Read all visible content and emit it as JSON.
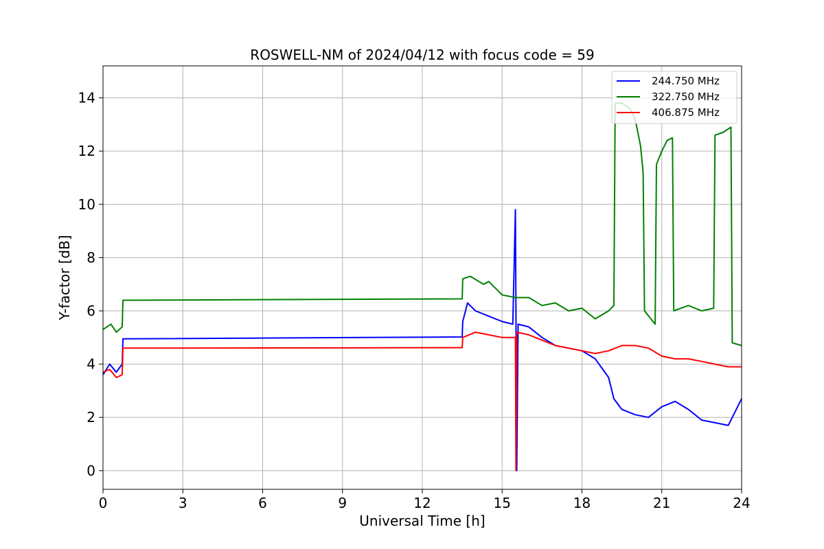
{
  "chart_data": {
    "type": "line",
    "title": "ROSWELL-NM of 2024/04/12 with focus code = 59",
    "xlabel": "Universal Time [h]",
    "ylabel": "Y-factor [dB]",
    "xlim": [
      0,
      24
    ],
    "ylim": [
      -0.7,
      15.2
    ],
    "xticks": [
      0,
      3,
      6,
      9,
      12,
      15,
      18,
      21,
      24
    ],
    "xtick_labels": [
      "0",
      "3",
      "6",
      "9",
      "12",
      "15",
      "18",
      "21",
      "24"
    ],
    "yticks": [
      0,
      2,
      4,
      6,
      8,
      10,
      12,
      14
    ],
    "ytick_labels": [
      "0",
      "2",
      "4",
      "6",
      "8",
      "10",
      "12",
      "14"
    ],
    "grid": true,
    "legend_position": "top-right",
    "series": [
      {
        "name": "244.750 MHz",
        "color": "#0000ff",
        "points": [
          [
            0.0,
            3.6
          ],
          [
            0.25,
            4.0
          ],
          [
            0.5,
            3.7
          ],
          [
            0.72,
            4.0
          ],
          [
            0.75,
            4.95
          ],
          [
            13.5,
            5.02
          ],
          [
            13.52,
            5.6
          ],
          [
            13.7,
            6.3
          ],
          [
            14.0,
            6.0
          ],
          [
            14.5,
            5.8
          ],
          [
            15.0,
            5.6
          ],
          [
            15.4,
            5.5
          ],
          [
            15.5,
            9.8
          ],
          [
            15.55,
            0.0
          ],
          [
            15.6,
            5.5
          ],
          [
            16.0,
            5.4
          ],
          [
            16.5,
            5.0
          ],
          [
            17.0,
            4.7
          ],
          [
            17.5,
            4.6
          ],
          [
            18.0,
            4.5
          ],
          [
            18.5,
            4.2
          ],
          [
            19.0,
            3.5
          ],
          [
            19.2,
            2.7
          ],
          [
            19.5,
            2.3
          ],
          [
            20.0,
            2.1
          ],
          [
            20.5,
            2.0
          ],
          [
            21.0,
            2.4
          ],
          [
            21.5,
            2.6
          ],
          [
            22.0,
            2.3
          ],
          [
            22.5,
            1.9
          ],
          [
            23.0,
            1.8
          ],
          [
            23.5,
            1.7
          ],
          [
            24.0,
            2.7
          ]
        ]
      },
      {
        "name": "322.750 MHz",
        "color": "#008000",
        "points": [
          [
            0.0,
            5.3
          ],
          [
            0.3,
            5.5
          ],
          [
            0.5,
            5.2
          ],
          [
            0.72,
            5.4
          ],
          [
            0.75,
            6.4
          ],
          [
            13.5,
            6.45
          ],
          [
            13.52,
            7.2
          ],
          [
            13.8,
            7.3
          ],
          [
            14.3,
            7.0
          ],
          [
            14.5,
            7.1
          ],
          [
            15.0,
            6.6
          ],
          [
            15.5,
            6.5
          ],
          [
            16.0,
            6.5
          ],
          [
            16.5,
            6.2
          ],
          [
            17.0,
            6.3
          ],
          [
            17.5,
            6.0
          ],
          [
            18.0,
            6.1
          ],
          [
            18.5,
            5.7
          ],
          [
            19.0,
            6.0
          ],
          [
            19.2,
            6.2
          ],
          [
            19.25,
            13.8
          ],
          [
            19.5,
            13.8
          ],
          [
            19.8,
            13.6
          ],
          [
            20.0,
            13.2
          ],
          [
            20.2,
            12.2
          ],
          [
            20.3,
            11.2
          ],
          [
            20.35,
            6.0
          ],
          [
            20.75,
            5.5
          ],
          [
            20.8,
            11.5
          ],
          [
            21.0,
            12.0
          ],
          [
            21.2,
            12.4
          ],
          [
            21.4,
            12.5
          ],
          [
            21.45,
            6.0
          ],
          [
            22.0,
            6.2
          ],
          [
            22.5,
            6.0
          ],
          [
            22.95,
            6.1
          ],
          [
            23.0,
            12.6
          ],
          [
            23.3,
            12.7
          ],
          [
            23.6,
            12.9
          ],
          [
            23.65,
            4.8
          ],
          [
            24.0,
            4.7
          ]
        ]
      },
      {
        "name": "406.875 MHz",
        "color": "#ff0000",
        "points": [
          [
            0.0,
            3.7
          ],
          [
            0.25,
            3.8
          ],
          [
            0.5,
            3.5
          ],
          [
            0.72,
            3.6
          ],
          [
            0.75,
            4.6
          ],
          [
            13.5,
            4.62
          ],
          [
            13.52,
            5.0
          ],
          [
            14.0,
            5.2
          ],
          [
            14.5,
            5.1
          ],
          [
            15.0,
            5.0
          ],
          [
            15.5,
            5.0
          ],
          [
            15.52,
            0.0
          ],
          [
            15.55,
            5.2
          ],
          [
            16.0,
            5.1
          ],
          [
            16.5,
            4.9
          ],
          [
            17.0,
            4.7
          ],
          [
            17.5,
            4.6
          ],
          [
            18.0,
            4.5
          ],
          [
            18.5,
            4.4
          ],
          [
            19.0,
            4.5
          ],
          [
            19.5,
            4.7
          ],
          [
            20.0,
            4.7
          ],
          [
            20.5,
            4.6
          ],
          [
            21.0,
            4.3
          ],
          [
            21.5,
            4.2
          ],
          [
            22.0,
            4.2
          ],
          [
            22.5,
            4.1
          ],
          [
            23.0,
            4.0
          ],
          [
            23.5,
            3.9
          ],
          [
            24.0,
            3.9
          ]
        ]
      }
    ]
  }
}
